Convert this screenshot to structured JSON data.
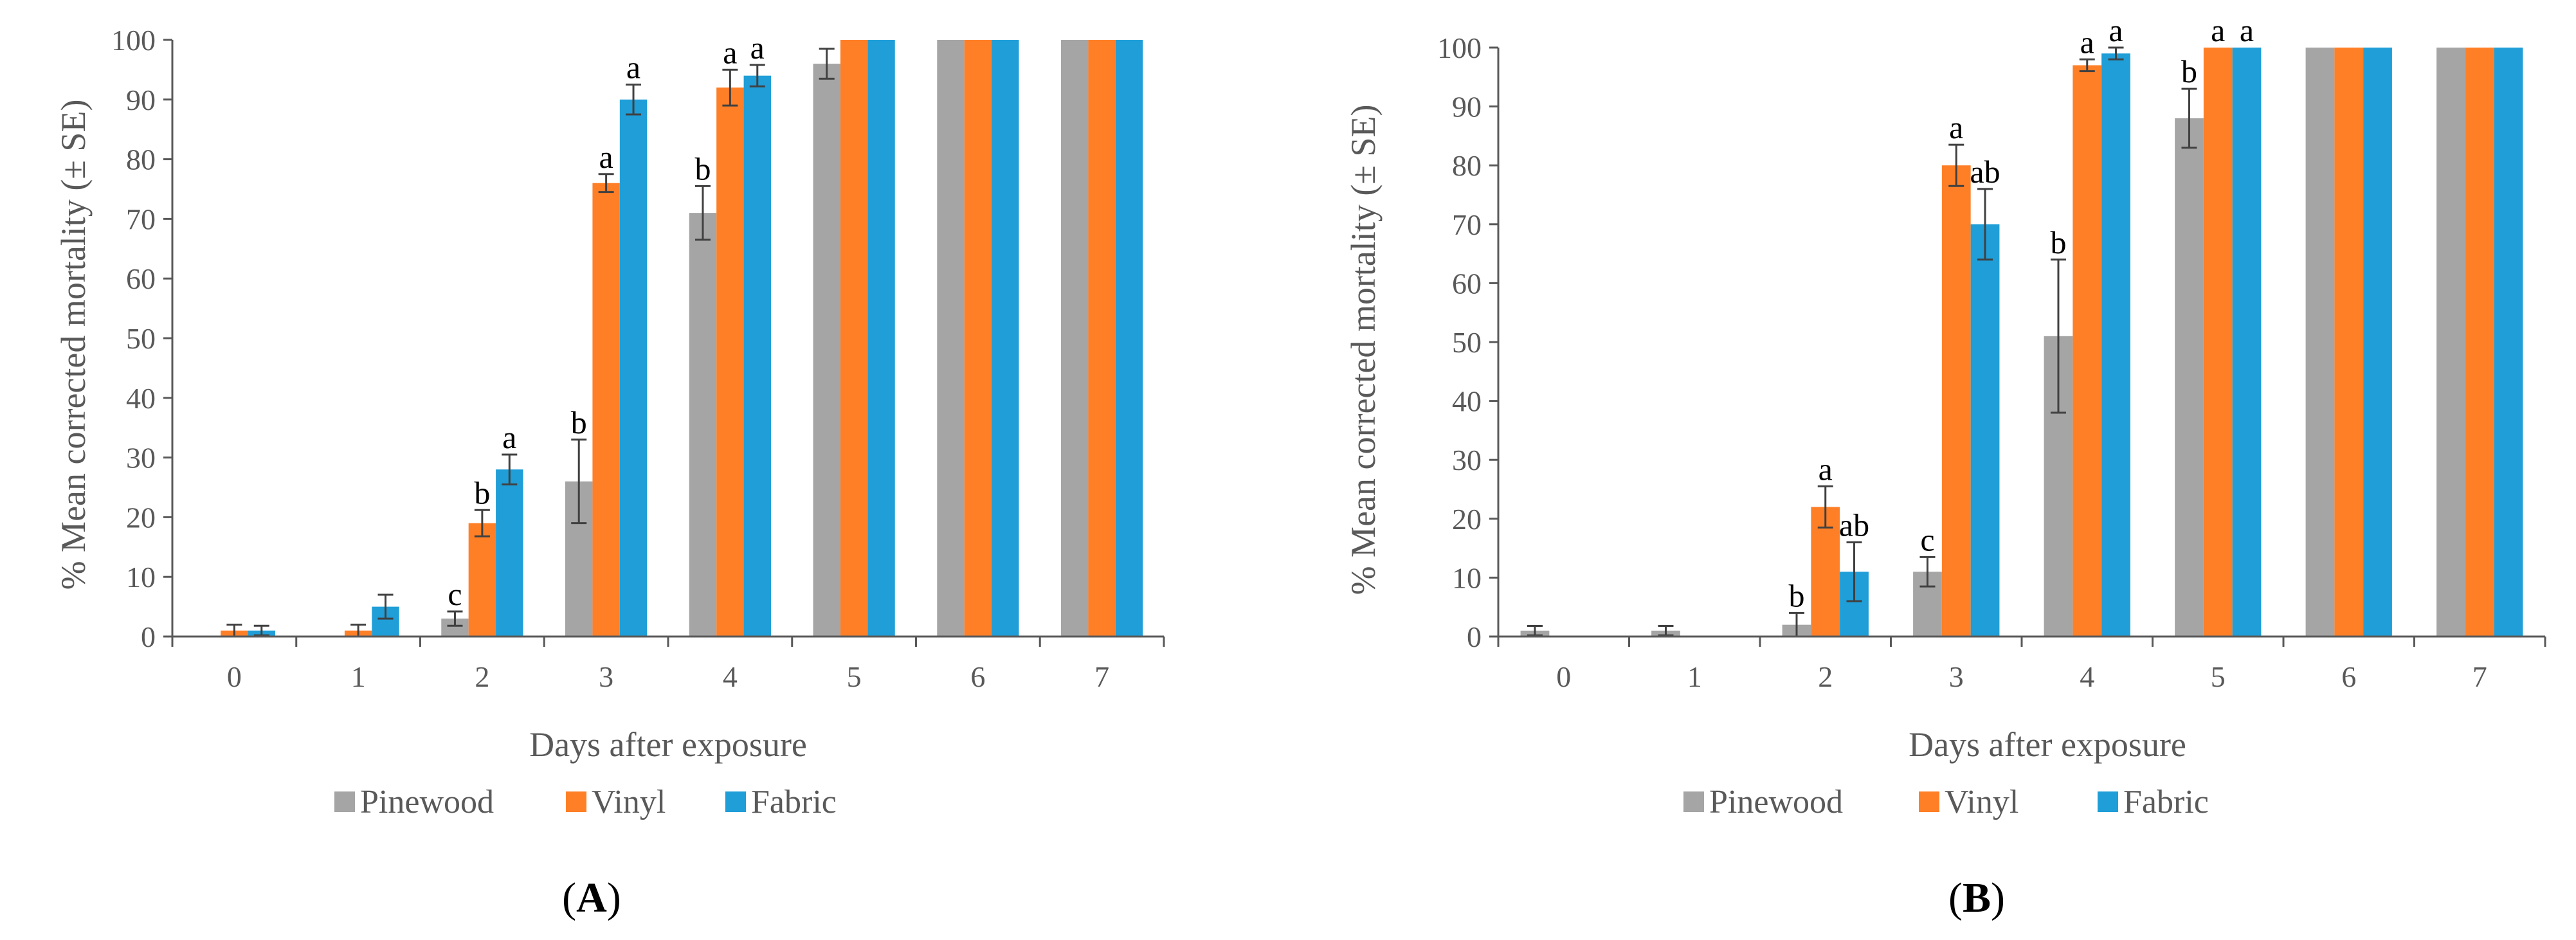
{
  "chart_data": [
    {
      "panel": "A",
      "type": "bar",
      "xlabel": "Days after exposure",
      "ylabel": "% Mean corrected mortality (± SE)",
      "ylim": [
        0,
        100
      ],
      "yticks": [
        0,
        10,
        20,
        30,
        40,
        50,
        60,
        70,
        80,
        90,
        100
      ],
      "categories": [
        "0",
        "1",
        "2",
        "3",
        "4",
        "5",
        "6",
        "7"
      ],
      "legend_position": "bottom",
      "series": [
        {
          "name": "Pinewood",
          "color": "#a5a5a5",
          "values": [
            0,
            0,
            3,
            26,
            71,
            96,
            100,
            100
          ],
          "errors": [
            0,
            0,
            1.2,
            7,
            4.5,
            2.5,
            0,
            0
          ],
          "letters": [
            "",
            "",
            "c",
            "b",
            "b",
            "",
            "",
            ""
          ]
        },
        {
          "name": "Vinyl",
          "color": "#ff7f27",
          "values": [
            1,
            1,
            19,
            76,
            92,
            100,
            100,
            100
          ],
          "errors": [
            1,
            1,
            2.2,
            1.5,
            3,
            0,
            0,
            0
          ],
          "letters": [
            "",
            "",
            "b",
            "a",
            "a",
            "",
            "",
            ""
          ]
        },
        {
          "name": "Fabric",
          "color": "#1f9ed8",
          "values": [
            1,
            5,
            28,
            90,
            94,
            100,
            100,
            100
          ],
          "errors": [
            0.8,
            2,
            2.5,
            2.5,
            1.8,
            0,
            0,
            0
          ],
          "letters": [
            "",
            "",
            "a",
            "a",
            "a",
            "",
            "",
            ""
          ]
        }
      ]
    },
    {
      "panel": "B",
      "type": "bar",
      "xlabel": "Days after exposure",
      "ylabel": "% Mean corrected mortality (± SE)",
      "ylim": [
        0,
        100
      ],
      "yticks": [
        0,
        10,
        20,
        30,
        40,
        50,
        60,
        70,
        80,
        90,
        100
      ],
      "categories": [
        "0",
        "1",
        "2",
        "3",
        "4",
        "5",
        "6",
        "7"
      ],
      "legend_position": "bottom",
      "series": [
        {
          "name": "Pinewood",
          "color": "#a5a5a5",
          "values": [
            1,
            1,
            2,
            11,
            51,
            88,
            100,
            100
          ],
          "errors": [
            0.8,
            0.8,
            2,
            2.5,
            13,
            5,
            0,
            0
          ],
          "letters": [
            "",
            "",
            "b",
            "c",
            "b",
            "b",
            "",
            ""
          ]
        },
        {
          "name": "Vinyl",
          "color": "#ff7f27",
          "values": [
            0,
            0,
            22,
            80,
            97,
            100,
            100,
            100
          ],
          "errors": [
            0,
            0,
            3.5,
            3.5,
            1,
            0,
            0,
            0
          ],
          "letters": [
            "",
            "",
            "a",
            "a",
            "a",
            "a",
            "",
            ""
          ]
        },
        {
          "name": "Fabric",
          "color": "#1f9ed8",
          "values": [
            0,
            0,
            11,
            70,
            99,
            100,
            100,
            100
          ],
          "errors": [
            0,
            0,
            5,
            6,
            1,
            0,
            0,
            0
          ],
          "letters": [
            "",
            "",
            "ab",
            "ab",
            "a",
            "a",
            "",
            ""
          ]
        }
      ]
    }
  ]
}
